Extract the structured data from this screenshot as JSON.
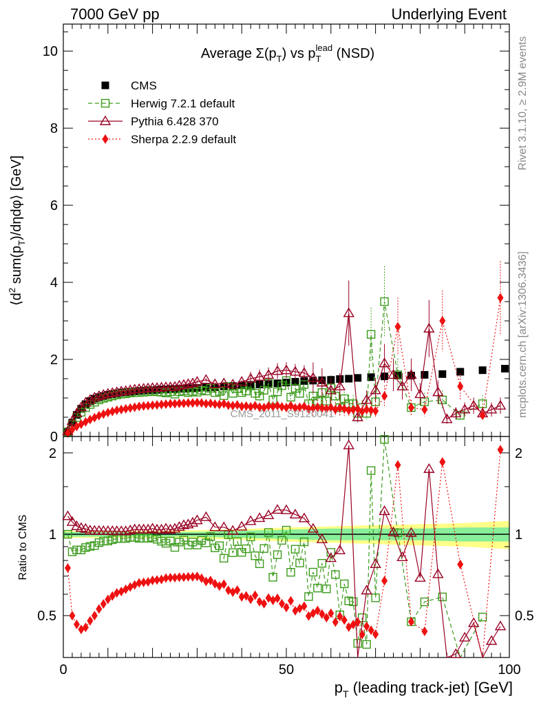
{
  "header": {
    "energy_label": "7000 GeV pp",
    "process_label": "Underlying Event"
  },
  "side": {
    "rivet_label": "Rivet 3.1.10, ≥ 2.9M events",
    "mcplots_label": "mcplots.cern.ch [arXiv:1306.3436]"
  },
  "watermark": "CMS_2011_S9120041",
  "chart_data": [
    {
      "type": "scatter",
      "panel": "main",
      "title": "Average Σ(p_T) vs p_T^lead (NSD)",
      "title_parts": {
        "lead": "Average ",
        "sigma": "Σ(p",
        "sub1": "T",
        "close": ") vs p",
        "sub2": "T",
        "sup2": "lead",
        "tail": " (NSD)"
      },
      "ylabel": "⟨d² sum(p_T)/dηdφ⟩ [GeV]",
      "ylabel_parts": {
        "a": "⟨d",
        "b": "2",
        "c": " sum(p",
        "d": "T",
        "e": ")/dηdφ⟩ [GeV]"
      },
      "xlim": [
        0,
        100
      ],
      "ylim": [
        0,
        10.7
      ],
      "y_ticks": [
        0,
        2,
        4,
        6,
        8,
        10
      ],
      "y_tick_labels": [
        "0",
        "2",
        "4",
        "6",
        "8",
        "10"
      ],
      "legend": [
        {
          "name": "CMS",
          "color": "#000000",
          "marker": "square-filled"
        },
        {
          "name": "Herwig 7.2.1 default",
          "color": "#3a9a1a",
          "marker": "square-open"
        },
        {
          "name": "Pythia 6.428 370",
          "color": "#990022",
          "marker": "triangle-open"
        },
        {
          "name": "Sherpa 2.2.9 default",
          "color": "#ee1111",
          "marker": "diamond-filled"
        }
      ],
      "series": [
        {
          "name": "CMS",
          "color": "#000000",
          "x": [
            1,
            2,
            3,
            4,
            5,
            6,
            7,
            8,
            9,
            10,
            11,
            12,
            13,
            14,
            15,
            16,
            17,
            18,
            19,
            20,
            21,
            22,
            23,
            24,
            25,
            26,
            27,
            28,
            29,
            30,
            32,
            34,
            36,
            38,
            40,
            42,
            44,
            46,
            48,
            50,
            52,
            54,
            56,
            58,
            60,
            62,
            64,
            66,
            69,
            72,
            75,
            78,
            81,
            85,
            89,
            94,
            99
          ],
          "y": [
            0.12,
            0.36,
            0.56,
            0.72,
            0.84,
            0.92,
            0.98,
            1.02,
            1.05,
            1.08,
            1.1,
            1.12,
            1.14,
            1.15,
            1.16,
            1.17,
            1.18,
            1.19,
            1.2,
            1.2,
            1.21,
            1.22,
            1.22,
            1.23,
            1.23,
            1.24,
            1.24,
            1.25,
            1.25,
            1.26,
            1.27,
            1.28,
            1.3,
            1.31,
            1.33,
            1.34,
            1.35,
            1.36,
            1.38,
            1.4,
            1.42,
            1.44,
            1.45,
            1.46,
            1.47,
            1.49,
            1.5,
            1.52,
            1.54,
            1.56,
            1.58,
            1.58,
            1.6,
            1.62,
            1.68,
            1.72,
            1.76
          ]
        },
        {
          "name": "Herwig 7.2.1 default",
          "color": "#3a9a1a",
          "x": [
            1,
            2,
            3,
            4,
            5,
            6,
            7,
            8,
            9,
            10,
            11,
            12,
            13,
            14,
            15,
            16,
            17,
            18,
            19,
            20,
            21,
            22,
            23,
            24,
            25,
            26,
            27,
            28,
            29,
            30,
            31,
            32,
            33,
            34,
            35,
            36,
            37,
            38,
            39,
            40,
            41,
            42,
            43,
            44,
            45,
            46,
            47,
            48,
            49,
            50,
            51,
            52,
            53,
            54,
            55,
            56,
            57,
            58,
            59,
            60,
            61,
            62,
            63,
            64,
            65,
            66,
            67,
            68,
            69,
            70,
            72,
            75,
            78,
            81,
            85,
            89,
            94
          ],
          "y": [
            0.12,
            0.31,
            0.49,
            0.63,
            0.75,
            0.83,
            0.89,
            0.95,
            0.99,
            1.02,
            1.05,
            1.08,
            1.1,
            1.11,
            1.13,
            1.14,
            1.14,
            1.15,
            1.16,
            1.17,
            1.16,
            1.15,
            1.13,
            1.16,
            1.1,
            1.16,
            1.18,
            1.14,
            1.17,
            1.15,
            1.2,
            1.18,
            1.25,
            1.14,
            1.17,
            1.06,
            1.3,
            1.12,
            1.24,
            1.14,
            1.18,
            1.31,
            1.12,
            1.05,
            1.2,
            1.38,
            0.95,
            1.16,
            1.32,
            1.45,
            1.02,
            1.25,
            1.12,
            1.35,
            0.85,
            1.05,
            0.92,
            1.14,
            0.92,
            1.26,
            1.05,
            0.75,
            0.98,
            0.85,
            0.85,
            0.6,
            0.75,
            0.6,
            2.65,
            0.9,
            3.5,
            1.6,
            0.75,
            0.9,
            0.95,
            0.55,
            0.85
          ]
        },
        {
          "name": "Pythia 6.428 370",
          "color": "#990022",
          "x": [
            1,
            2,
            3,
            4,
            5,
            6,
            7,
            8,
            9,
            10,
            11,
            12,
            13,
            14,
            15,
            16,
            17,
            18,
            19,
            20,
            21,
            22,
            23,
            24,
            25,
            26,
            27,
            28,
            29,
            30,
            32,
            34,
            36,
            38,
            40,
            42,
            44,
            46,
            48,
            50,
            52,
            54,
            56,
            58,
            60,
            62,
            64,
            66,
            68,
            70,
            72,
            74,
            76,
            78,
            80,
            82,
            84,
            86,
            88,
            90,
            92,
            94,
            96,
            98
          ],
          "y": [
            0.14,
            0.4,
            0.6,
            0.76,
            0.88,
            0.95,
            1.01,
            1.05,
            1.08,
            1.11,
            1.13,
            1.15,
            1.17,
            1.18,
            1.2,
            1.22,
            1.23,
            1.24,
            1.25,
            1.26,
            1.26,
            1.27,
            1.28,
            1.28,
            1.29,
            1.32,
            1.34,
            1.36,
            1.38,
            1.42,
            1.47,
            1.36,
            1.38,
            1.35,
            1.42,
            1.5,
            1.55,
            1.6,
            1.7,
            1.72,
            1.68,
            1.65,
            1.52,
            1.4,
            1.2,
            1.3,
            3.2,
            0.5,
            0.95,
            1.2,
            1.9,
            1.6,
            1.3,
            1.6,
            1.1,
            2.8,
            1.15,
            0.45,
            0.6,
            0.7,
            0.8,
            0.6,
            0.7,
            0.8
          ]
        },
        {
          "name": "Sherpa 2.2.9 default",
          "color": "#ee1111",
          "x": [
            1,
            2,
            3,
            4,
            5,
            6,
            7,
            8,
            9,
            10,
            11,
            12,
            13,
            14,
            15,
            16,
            17,
            18,
            19,
            20,
            21,
            22,
            23,
            24,
            25,
            26,
            27,
            28,
            29,
            30,
            31,
            32,
            33,
            34,
            35,
            36,
            37,
            38,
            39,
            40,
            41,
            42,
            43,
            44,
            45,
            46,
            47,
            48,
            49,
            50,
            51,
            52,
            53,
            54,
            55,
            56,
            57,
            58,
            59,
            60,
            61,
            62,
            63,
            64,
            65,
            66,
            67,
            68,
            69,
            70,
            72,
            75,
            78,
            81,
            85,
            89,
            94,
            98
          ],
          "y": [
            0.09,
            0.18,
            0.26,
            0.32,
            0.38,
            0.44,
            0.49,
            0.54,
            0.58,
            0.62,
            0.65,
            0.68,
            0.7,
            0.72,
            0.74,
            0.76,
            0.78,
            0.79,
            0.8,
            0.81,
            0.82,
            0.83,
            0.84,
            0.85,
            0.85,
            0.86,
            0.86,
            0.87,
            0.87,
            0.88,
            0.87,
            0.85,
            0.86,
            0.84,
            0.83,
            0.85,
            0.81,
            0.8,
            0.82,
            0.78,
            0.79,
            0.77,
            0.8,
            0.76,
            0.75,
            0.79,
            0.78,
            0.8,
            0.77,
            0.75,
            0.8,
            0.74,
            0.76,
            0.78,
            0.72,
            0.74,
            0.76,
            0.74,
            0.72,
            0.75,
            0.7,
            0.74,
            0.72,
            0.68,
            0.7,
            0.72,
            0.65,
            0.7,
            0.68,
            0.66,
            1.05,
            2.85,
            0.75,
            0.7,
            3.0,
            1.3,
            0.55,
            3.6
          ]
        }
      ]
    },
    {
      "type": "scatter",
      "panel": "ratio",
      "ylabel": "Ratio to CMS",
      "xlabel": "p_T (leading track-jet) [GeV]",
      "xlabel_parts": {
        "p": "p",
        "sub": "T",
        "rest": " (leading track-jet) [GeV]"
      },
      "xlim": [
        0,
        100
      ],
      "ylim": [
        0.35,
        2.3
      ],
      "x_ticks": [
        0,
        50,
        100
      ],
      "x_tick_labels": [
        "0",
        "50",
        "100"
      ],
      "y_ticks": [
        0.5,
        1,
        2
      ],
      "y_tick_labels": [
        "0.5",
        "1",
        "2"
      ],
      "reference_line": 1,
      "uncertainty_band": {
        "x": [
          0,
          10,
          20,
          30,
          40,
          50,
          60,
          70,
          80,
          90,
          100
        ],
        "stat_half_width": [
          0.02,
          0.02,
          0.02,
          0.02,
          0.03,
          0.04,
          0.05,
          0.05,
          0.05,
          0.06,
          0.06
        ],
        "total_half_width": [
          0.03,
          0.03,
          0.03,
          0.035,
          0.045,
          0.06,
          0.07,
          0.08,
          0.09,
          0.1,
          0.12
        ]
      }
    }
  ]
}
